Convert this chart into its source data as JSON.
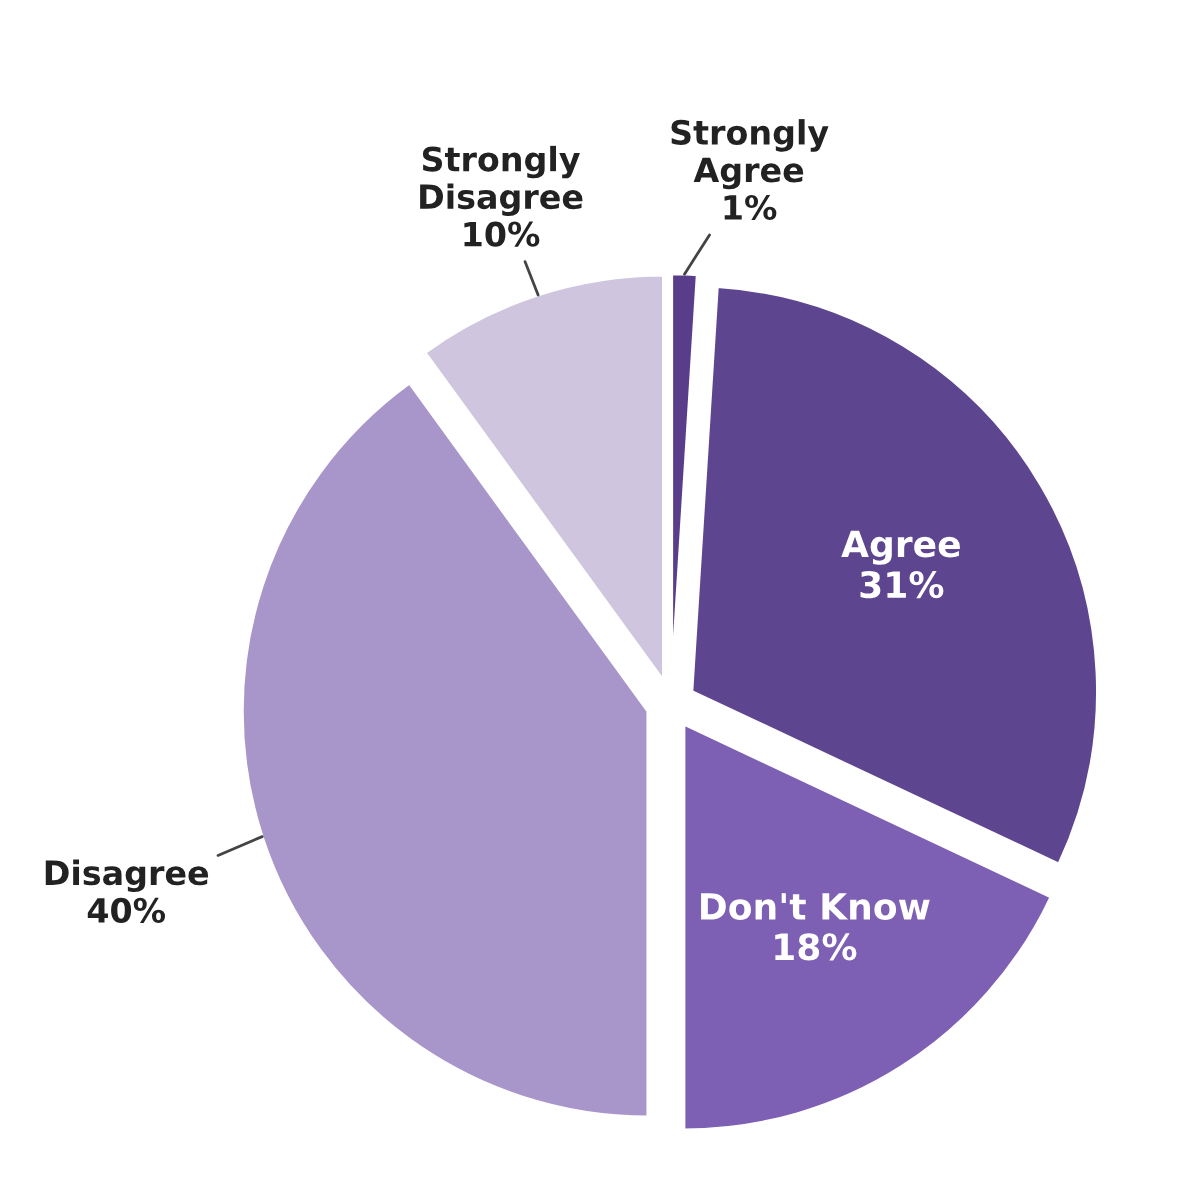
{
  "chart_data": {
    "type": "pie",
    "categories": [
      "Strongly Agree",
      "Agree",
      "Don't Know",
      "Disagree",
      "Strongly Disagree"
    ],
    "values": [
      1,
      31,
      18,
      40,
      10
    ],
    "colors": [
      "#5a3d8a",
      "#5e4590",
      "#7d5fb3",
      "#a895c9",
      "#cfc5de"
    ],
    "value_labels": [
      "1%",
      "31%",
      "18%",
      "40%",
      "10%"
    ]
  }
}
